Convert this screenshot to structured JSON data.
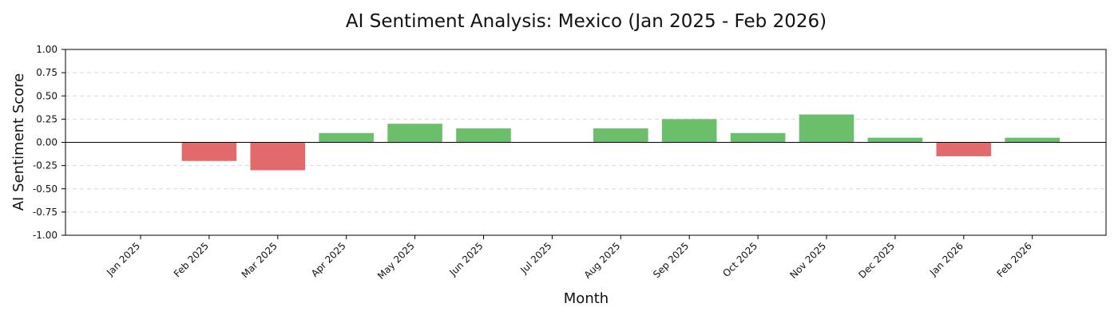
{
  "chart_data": {
    "type": "bar",
    "title": "AI Sentiment Analysis: Mexico (Jan 2025 - Feb 2026)",
    "xlabel": "Month",
    "ylabel": "AI Sentiment Score",
    "ylim": [
      -1.0,
      1.0
    ],
    "yticks": [
      "-1.00",
      "-0.75",
      "-0.50",
      "-0.25",
      "0.00",
      "0.25",
      "0.50",
      "0.75",
      "1.00"
    ],
    "categories": [
      "Jan 2025",
      "Feb 2025",
      "Mar 2025",
      "Apr 2025",
      "May 2025",
      "Jun 2025",
      "Jul 2025",
      "Aug 2025",
      "Sep 2025",
      "Oct 2025",
      "Nov 2025",
      "Dec 2025",
      "Jan 2026",
      "Feb 2026"
    ],
    "values": [
      0.0,
      -0.2,
      -0.3,
      0.1,
      0.2,
      0.15,
      0.0,
      0.15,
      0.25,
      0.1,
      0.3,
      0.05,
      -0.15,
      0.05
    ],
    "grid": "y-dashed",
    "colors": {
      "positive": "#6bbf6b",
      "negative": "#e36a6a"
    }
  }
}
